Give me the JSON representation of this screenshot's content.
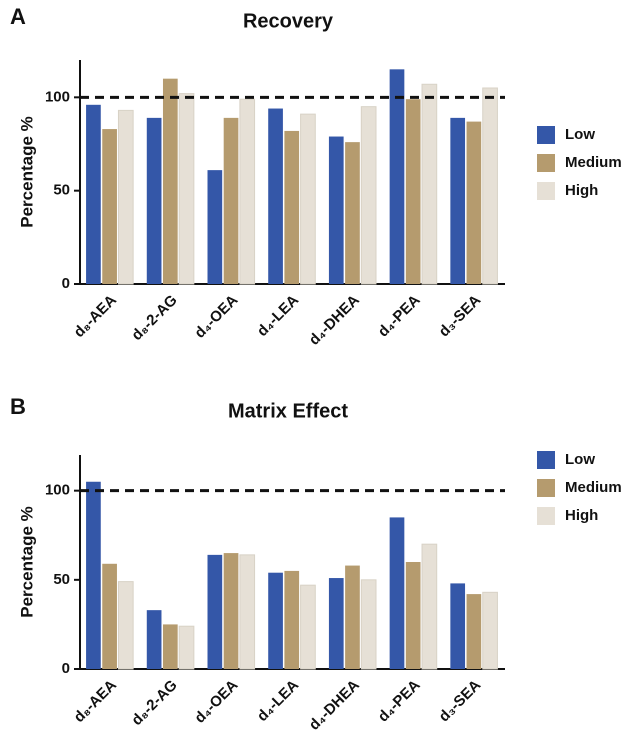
{
  "chart_data": [
    {
      "type": "bar",
      "label": "A",
      "title": "Recovery",
      "y_label": "Percentage %",
      "categories": [
        "d₈-AEA",
        "d₈-2-AG",
        "d₄-OEA",
        "d₄-LEA",
        "d₄-DHEA",
        "d₄-PEA",
        "d₃-SEA"
      ],
      "series": [
        {
          "name": "Low",
          "color": "#3457a8",
          "values": [
            96,
            89,
            61,
            94,
            79,
            115,
            89
          ]
        },
        {
          "name": "Medium",
          "color": "#b59b6e",
          "values": [
            83,
            110,
            89,
            82,
            76,
            99,
            87
          ]
        },
        {
          "name": "High",
          "color": "#e6e0d6",
          "values": [
            93,
            102,
            99,
            91,
            95,
            107,
            105
          ]
        }
      ],
      "ylim": [
        0,
        120
      ],
      "yticks": [
        0,
        50,
        100
      ],
      "reference_line": 100,
      "legend": "right"
    },
    {
      "type": "bar",
      "label": "B",
      "title": "Matrix Effect",
      "y_label": "Percentage %",
      "categories": [
        "d₈-AEA",
        "d₈-2-AG",
        "d₄-OEA",
        "d₄-LEA",
        "d₄-DHEA",
        "d₄-PEA",
        "d₃-SEA"
      ],
      "series": [
        {
          "name": "Low",
          "color": "#3457a8",
          "values": [
            105,
            33,
            64,
            54,
            51,
            85,
            48
          ]
        },
        {
          "name": "Medium",
          "color": "#b59b6e",
          "values": [
            59,
            25,
            65,
            55,
            58,
            60,
            42
          ]
        },
        {
          "name": "High",
          "color": "#e6e0d6",
          "values": [
            49,
            24,
            64,
            47,
            50,
            70,
            43
          ]
        }
      ],
      "ylim": [
        0,
        120
      ],
      "yticks": [
        0,
        50,
        100
      ],
      "reference_line": 100,
      "legend": "right"
    }
  ]
}
